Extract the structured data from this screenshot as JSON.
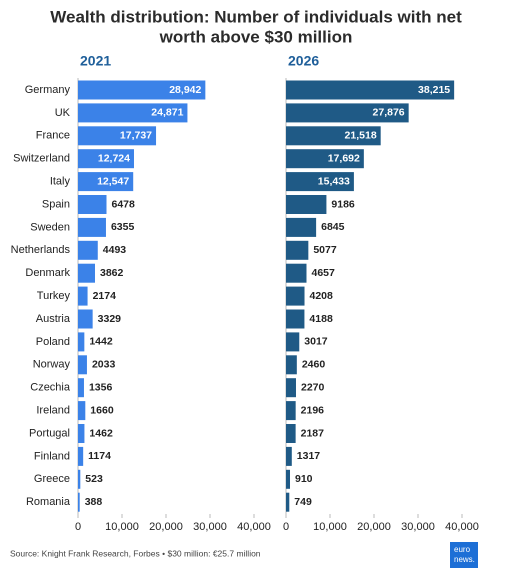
{
  "chart_data": {
    "type": "bar",
    "orientation": "horizontal",
    "title": [
      "Wealth distribution: Number of individuals with net",
      "worth above $30 million"
    ],
    "categories": [
      "Germany",
      "UK",
      "France",
      "Switzerland",
      "Italy",
      "Spain",
      "Sweden",
      "Netherlands",
      "Denmark",
      "Turkey",
      "Austria",
      "Poland",
      "Norway",
      "Czechia",
      "Ireland",
      "Portugal",
      "Finland",
      "Greece",
      "Romania"
    ],
    "series": [
      {
        "name": "2021",
        "color": "#3b82e8",
        "values": [
          28942,
          24871,
          17737,
          12724,
          12547,
          6478,
          6355,
          4493,
          3862,
          2174,
          3329,
          1442,
          2033,
          1356,
          1660,
          1462,
          1174,
          523,
          388
        ],
        "value_labels": [
          "28,942",
          "24,871",
          "17,737",
          "12,724",
          "12,547",
          "6478",
          "6355",
          "4493",
          "3862",
          "2174",
          "3329",
          "1442",
          "2033",
          "1356",
          "1660",
          "1462",
          "1174",
          "523",
          "388"
        ]
      },
      {
        "name": "2026",
        "color": "#1f5a86",
        "values": [
          38215,
          27876,
          21518,
          17692,
          15433,
          9186,
          6845,
          5077,
          4657,
          4208,
          4188,
          3017,
          2460,
          2270,
          2196,
          2187,
          1317,
          910,
          749
        ],
        "value_labels": [
          "38,215",
          "27,876",
          "21,518",
          "17,692",
          "15,433",
          "9186",
          "6845",
          "5077",
          "4657",
          "4208",
          "4188",
          "3017",
          "2460",
          "2270",
          "2196",
          "2187",
          "1317",
          "910",
          "749"
        ]
      }
    ],
    "xlim": [
      0,
      40000
    ],
    "xticks": [
      0,
      {
        "value": 10000,
        "label": "10,000"
      },
      {
        "value": 20000,
        "label": "20,000"
      },
      {
        "value": 30000,
        "label": "30,000"
      },
      {
        "value": 40000,
        "label": "40,000"
      }
    ],
    "source": "Source: Knight Frank Research, Forbes • $30 million: €25.7 million",
    "logo": [
      "euro",
      "news."
    ]
  }
}
